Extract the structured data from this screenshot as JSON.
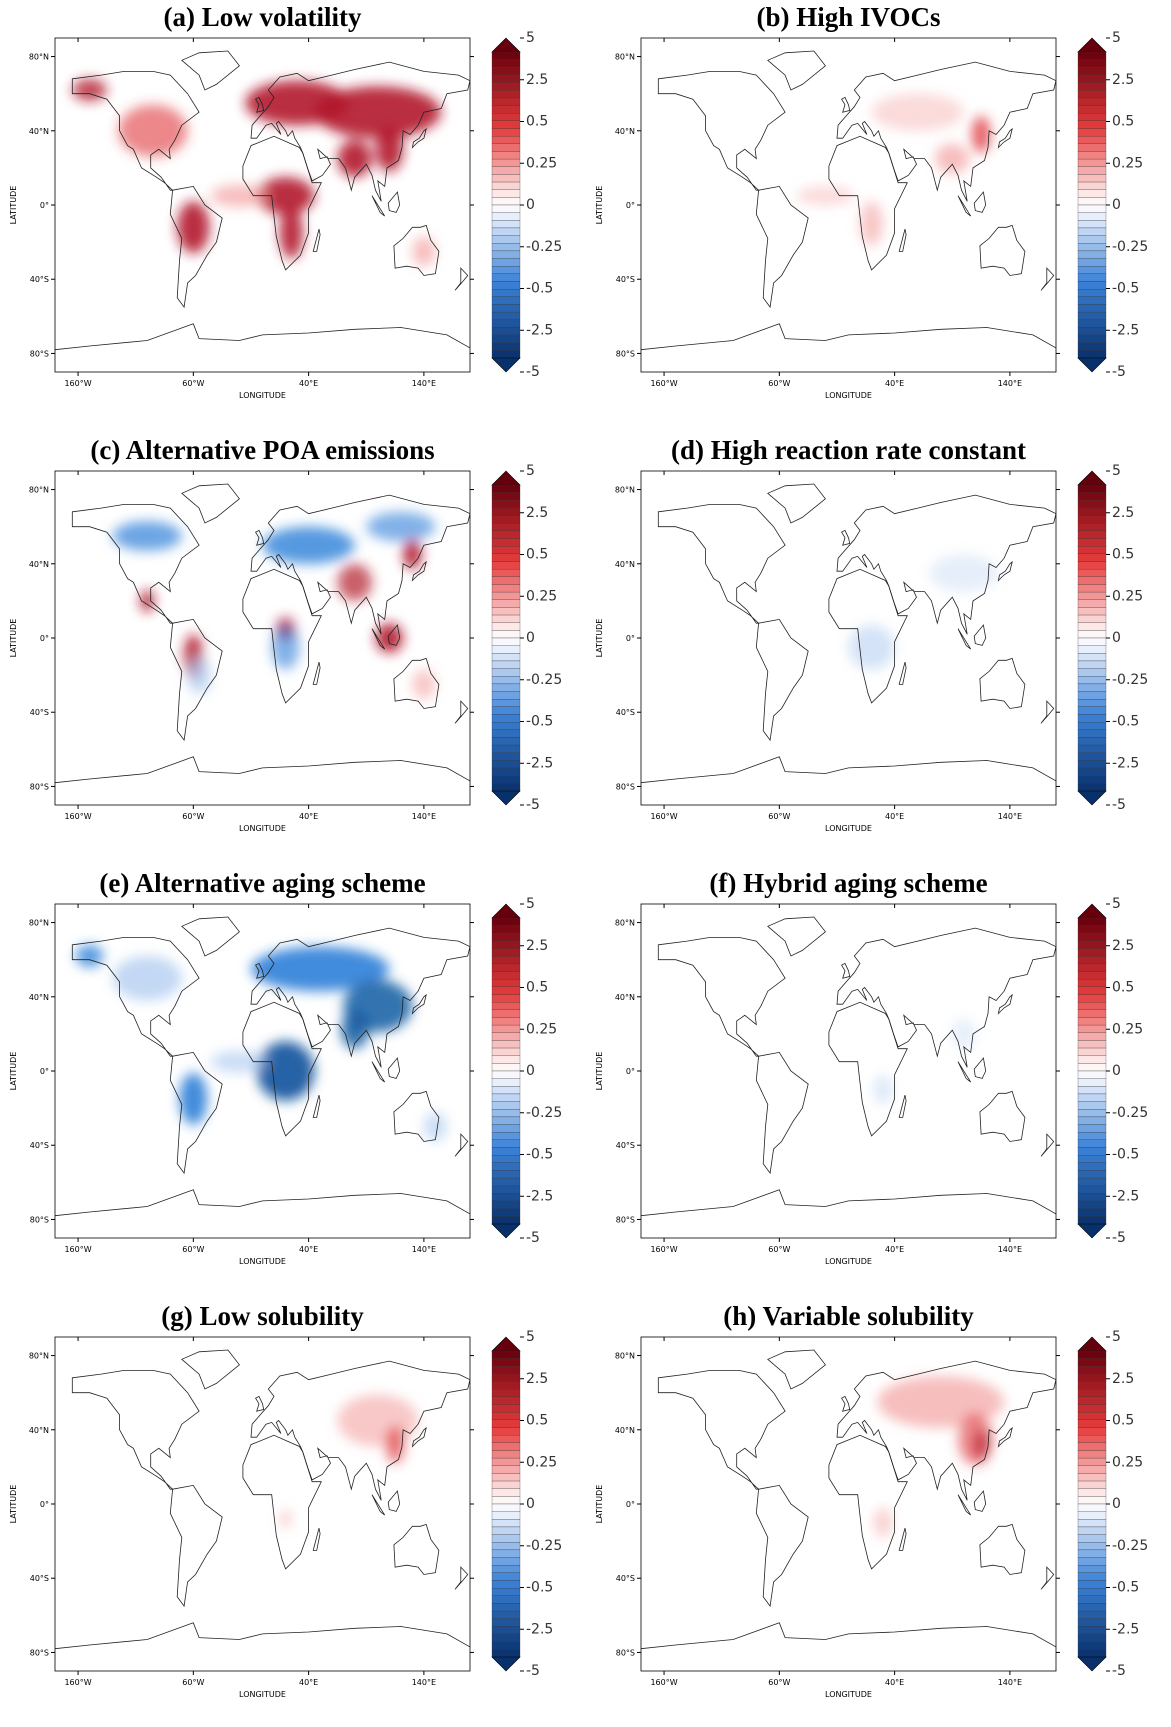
{
  "panels": [
    {
      "title": "(a) Low volatility"
    },
    {
      "title": "(b) High IVOCs"
    },
    {
      "title": "(c) Alternative POA emissions"
    },
    {
      "title": "(d) High reaction rate constant"
    },
    {
      "title": "(e) Alternative aging scheme"
    },
    {
      "title": "(f) Hybrid aging scheme"
    },
    {
      "title": "(g) Low solubility"
    },
    {
      "title": "(h) Variable solubility"
    }
  ],
  "axes": {
    "x_label": "LONGITUDE",
    "y_label": "LATITUDE",
    "x_ticks": [
      "160°W",
      "60°W",
      "40°E",
      "140°E"
    ],
    "y_ticks": [
      "80°N",
      "40°N",
      "0°",
      "40°S",
      "80°S"
    ]
  },
  "colorbar": {
    "labels": [
      "5",
      "2.5",
      "0.5",
      "0.25",
      "0",
      "-0.25",
      "-0.5",
      "-2.5",
      "-5"
    ]
  }
}
